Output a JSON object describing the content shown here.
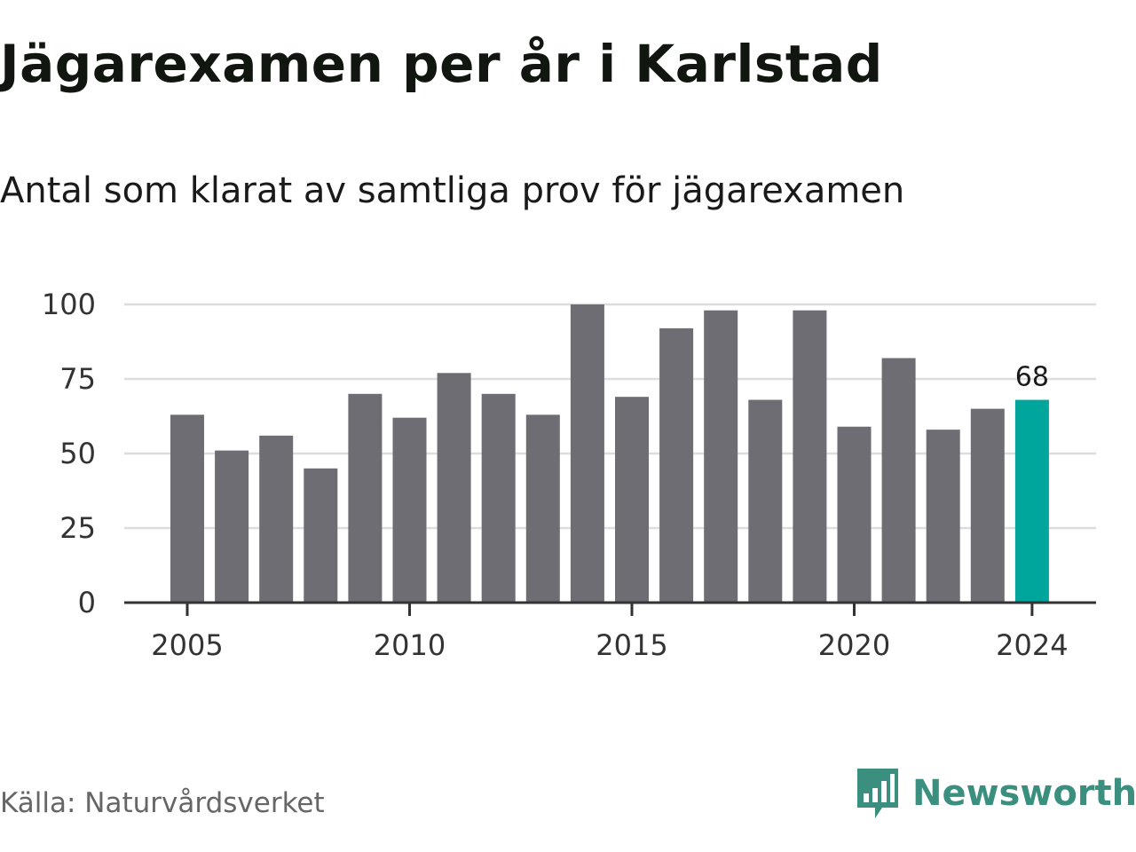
{
  "title": "Jägarexamen per år i Karlstad",
  "subtitle": "Antal som klarat av samtliga prov för jägarexamen",
  "source": "Källa: Naturvårdsverket",
  "brand": {
    "name": "Newsworthy",
    "icon": "newsworthy-chart-icon",
    "color": "#3a8f7e"
  },
  "colors": {
    "bar": "#6e6d73",
    "highlight": "#00a69c",
    "grid": "#dddddd",
    "axis": "#333333"
  },
  "chart_data": {
    "type": "bar",
    "categories": [
      2005,
      2006,
      2007,
      2008,
      2009,
      2010,
      2011,
      2012,
      2013,
      2014,
      2015,
      2016,
      2017,
      2018,
      2019,
      2020,
      2021,
      2022,
      2023,
      2024
    ],
    "values": [
      63,
      51,
      56,
      45,
      70,
      62,
      77,
      70,
      63,
      100,
      69,
      92,
      98,
      68,
      98,
      59,
      82,
      58,
      65,
      68
    ],
    "highlight_index": 19,
    "data_labels": [
      {
        "index": 19,
        "text": "68"
      }
    ],
    "xticks": [
      "2005",
      "2010",
      "2015",
      "2020",
      "2024"
    ],
    "yticks": [
      "0",
      "25",
      "50",
      "75",
      "100"
    ],
    "ylim": [
      0,
      100
    ],
    "xlabel": "",
    "ylabel": "",
    "grid": true,
    "legend": "none"
  }
}
